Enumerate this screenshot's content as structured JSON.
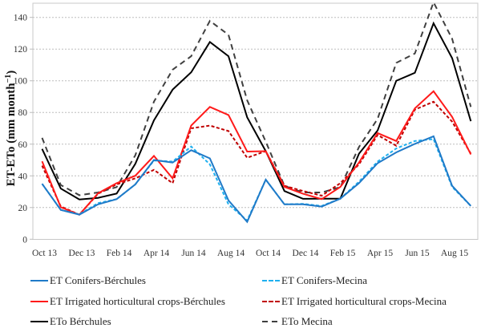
{
  "chart_data": {
    "type": "line",
    "title": "",
    "xlabel": "",
    "ylabel": "ET-ETo (mm month⁻¹)",
    "ylabel_main": "ET-ETo (mm month",
    "ylabel_sup": "−1",
    "ylabel_close": ")",
    "ylim": [
      0,
      150
    ],
    "yticks": [
      0,
      20,
      40,
      60,
      80,
      100,
      120,
      140
    ],
    "grid": "horizontal-dotted",
    "legend_position": "bottom",
    "x": [
      "Oct 13",
      "Nov 13",
      "Dec 13",
      "Jan 14",
      "Feb 14",
      "Mar 14",
      "Apr 14",
      "May 14",
      "Jun 14",
      "Jul 14",
      "Aug 14",
      "Sep 14",
      "Oct 14",
      "Nov 14",
      "Dec 14",
      "Jan 15",
      "Feb 15",
      "Mar 15",
      "Apr 15",
      "May 15",
      "Jun 15",
      "Jul 15",
      "Aug 15",
      "Sep 15"
    ],
    "xtick_labels": [
      "Oct 13",
      "Dec 13",
      "Feb 14",
      "Apr 14",
      "Jun 14",
      "Aug 14",
      "Oct 14",
      "Dec 14",
      "Feb 15",
      "Apr 15",
      "Jun 15",
      "Aug 15"
    ],
    "series": [
      {
        "name": "ET Conifers-Bérchules",
        "color": "#1f7ac8",
        "dash": "solid",
        "values": [
          35,
          18.5,
          15.5,
          22,
          25.3,
          34.6,
          50,
          48.4,
          56.2,
          51,
          24.5,
          11,
          37.6,
          22,
          22,
          20.6,
          25.6,
          35.4,
          48,
          54.8,
          60.2,
          65,
          33.7,
          21
        ]
      },
      {
        "name": "ET Conifers-Mecina",
        "color": "#1fb0ef",
        "dash": "dashed",
        "values": [
          35,
          18.5,
          15.7,
          22.8,
          25.3,
          34.6,
          49.7,
          49,
          58.5,
          47.2,
          22,
          11.8,
          37.6,
          22,
          22.3,
          21,
          25.6,
          36.3,
          49,
          57.3,
          62,
          63.2,
          33,
          21
        ]
      },
      {
        "name": "ET Irrigated horticultural crops-Bérchules",
        "color": "#ff1a1a",
        "dash": "solid",
        "values": [
          49.2,
          20.2,
          15.5,
          29,
          35.4,
          40.1,
          52.6,
          38.4,
          71.7,
          83.5,
          78.4,
          55.3,
          55.6,
          33,
          28.7,
          25.3,
          33,
          48.4,
          67,
          62,
          82.6,
          93.4,
          77.2,
          53.5
        ]
      },
      {
        "name": "ET Irrigated horticultural crops-Mecina",
        "color": "#c00000",
        "dash": "dashed",
        "values": [
          46.4,
          20.7,
          15.5,
          28.7,
          34.6,
          38.4,
          43.8,
          35.4,
          70,
          71.7,
          68.3,
          51.4,
          55.6,
          33.7,
          30.4,
          27.5,
          35.4,
          47.2,
          65.8,
          59,
          81.8,
          86.8,
          74.2,
          54
        ]
      },
      {
        "name": "ETo Bérchules",
        "color": "#000000",
        "dash": "solid",
        "values": [
          57,
          32,
          25.1,
          26.1,
          28.8,
          47.6,
          75,
          94.4,
          105.4,
          124.5,
          115.5,
          77,
          55.6,
          30.4,
          25.5,
          25.6,
          25.6,
          54,
          68.6,
          100,
          105,
          136.3,
          114.3,
          74.5
        ]
      },
      {
        "name": "ETo Mecina",
        "color": "#404040",
        "dash": "longdash",
        "values": [
          64,
          34.2,
          27.8,
          29.5,
          32.9,
          53,
          86.8,
          107,
          115.5,
          137.8,
          129,
          87.7,
          61.6,
          33.7,
          29.5,
          29.5,
          32.9,
          58.2,
          75.9,
          111.3,
          117.2,
          149.5,
          126.5,
          83.5
        ]
      }
    ]
  },
  "legend": [
    {
      "label": "ET Conifers-Bérchules"
    },
    {
      "label": "ET Conifers-Mecina"
    },
    {
      "label": "ET Irrigated horticultural crops-Bérchules"
    },
    {
      "label": "ET Irrigated horticultural crops-Mecina"
    },
    {
      "label": "ETo Bérchules"
    },
    {
      "label": "ETo Mecina"
    }
  ]
}
